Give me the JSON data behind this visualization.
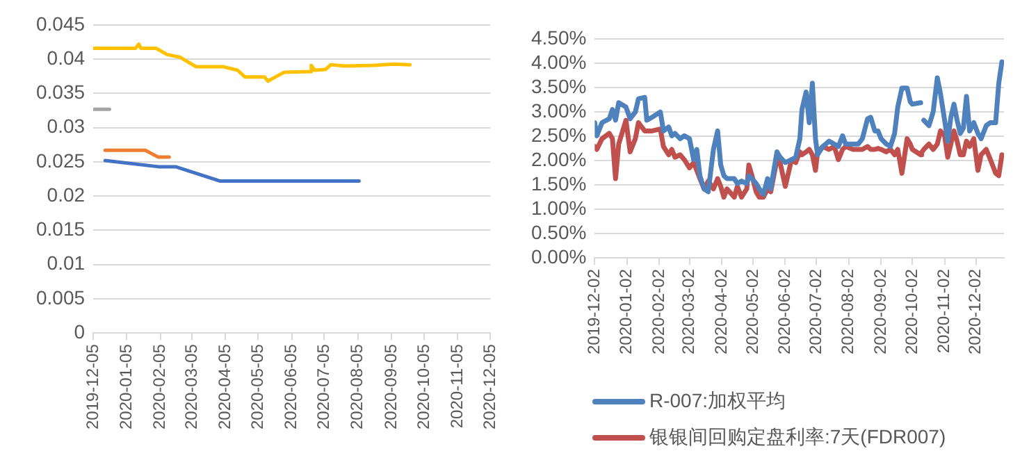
{
  "chart_data": [
    {
      "type": "line",
      "xlim": [
        "2019-12-05",
        "2020-12-05"
      ],
      "xticks": [
        "2019-12-05",
        "2020-01-05",
        "2020-02-05",
        "2020-03-05",
        "2020-04-05",
        "2020-05-05",
        "2020-06-05",
        "2020-07-05",
        "2020-08-05",
        "2020-09-05",
        "2020-10-05",
        "2020-11-05",
        "2020-12-05"
      ],
      "ylim": [
        0,
        0.045
      ],
      "yticks": [
        0,
        0.005,
        0.01,
        0.015,
        0.02,
        0.025,
        0.03,
        0.035,
        0.04,
        0.045
      ],
      "grid": "y",
      "marker": "none",
      "series": [
        {
          "color": "#ffc000",
          "x": [
            "2019-12-05",
            "2020-01-13",
            "2020-01-16",
            "2020-01-18",
            "2020-02-01",
            "2020-02-11",
            "2020-02-23",
            "2020-03-09",
            "2020-04-03",
            "2020-04-16",
            "2020-04-23",
            "2020-05-11",
            "2020-05-14",
            "2020-05-22",
            "2020-05-29",
            "2020-06-22",
            "2020-06-23",
            "2020-06-26",
            "2020-07-06",
            "2020-07-11",
            "2020-07-24",
            "2020-08-20",
            "2020-09-07",
            "2020-09-22"
          ],
          "values": [
            0.0416,
            0.0416,
            0.0422,
            0.0416,
            0.0416,
            0.0407,
            0.0403,
            0.0389,
            0.0389,
            0.0384,
            0.0374,
            0.0374,
            0.0368,
            0.0375,
            0.0381,
            0.0382,
            0.0391,
            0.0384,
            0.0385,
            0.0392,
            0.039,
            0.0391,
            0.0393,
            0.0392
          ]
        },
        {
          "color": "#a5a5a5",
          "x": [
            "2019-12-05",
            "2019-12-20"
          ],
          "values": [
            0.0327,
            0.0327
          ]
        },
        {
          "color": "#ed7d31",
          "x": [
            "2019-12-16",
            "2020-01-22",
            "2020-02-03",
            "2020-02-13"
          ],
          "values": [
            0.0267,
            0.0267,
            0.0257,
            0.0257
          ]
        },
        {
          "color": "#4472c4",
          "x": [
            "2019-12-16",
            "2020-02-03",
            "2020-02-19",
            "2020-03-31",
            "2020-08-06"
          ],
          "values": [
            0.0252,
            0.0243,
            0.0243,
            0.0222,
            0.0222
          ]
        }
      ]
    },
    {
      "type": "line",
      "xlim": [
        "2019-12-02",
        "2020-12-29"
      ],
      "xticks": [
        "2019-12-02",
        "2020-01-02",
        "2020-02-02",
        "2020-03-02",
        "2020-04-02",
        "2020-05-02",
        "2020-06-02",
        "2020-07-02",
        "2020-08-02",
        "2020-09-02",
        "2020-10-02",
        "2020-11-02",
        "2020-12-02"
      ],
      "ylim": [
        0,
        4.5
      ],
      "yticks": [
        {
          "value": 0,
          "label": "0.00%"
        },
        {
          "value": 0.5,
          "label": "0.50%"
        },
        {
          "value": 1,
          "label": "1.00%"
        },
        {
          "value": 1.5,
          "label": "1.50%"
        },
        {
          "value": 2,
          "label": "2.00%"
        },
        {
          "value": 2.5,
          "label": "2.50%"
        },
        {
          "value": 3,
          "label": "3.00%"
        },
        {
          "value": 3.5,
          "label": "3.50%"
        },
        {
          "value": 4,
          "label": "4.00%"
        },
        {
          "value": 4.5,
          "label": "4.50%"
        }
      ],
      "grid": "y",
      "marker": "none",
      "legend": "bottom",
      "x": [
        "2019-12-02",
        "2019-12-04",
        "2019-12-09",
        "2019-12-16",
        "2019-12-19",
        "2019-12-22",
        "2019-12-25",
        "2020-01-01",
        "2020-01-05",
        "2020-01-10",
        "2020-01-13",
        "2020-01-19",
        "2020-01-21",
        "2020-01-26",
        "2020-02-03",
        "2020-02-06",
        "2020-02-11",
        "2020-02-14",
        "2020-02-17",
        "2020-02-22",
        "2020-02-26",
        "2020-03-02",
        "2020-03-06",
        "2020-03-09",
        "2020-03-12",
        "2020-03-16",
        "2020-03-20",
        "2020-03-25",
        "2020-03-29",
        "2020-04-01",
        "2020-04-04",
        "2020-04-07",
        "2020-04-14",
        "2020-04-17",
        "2020-04-21",
        "2020-04-26",
        "2020-04-28",
        "2020-05-01",
        "2020-05-05",
        "2020-05-08",
        "2020-05-12",
        "2020-05-16",
        "2020-05-19",
        "2020-05-25",
        "2020-05-28",
        "2020-06-02",
        "2020-06-08",
        "2020-06-12",
        "2020-06-16",
        "2020-06-18",
        "2020-06-22",
        "2020-06-25",
        "2020-06-28",
        "2020-07-01",
        "2020-07-03",
        "2020-07-08",
        "2020-07-14",
        "2020-07-19",
        "2020-07-23",
        "2020-07-27",
        "2020-07-30",
        "2020-08-06",
        "2020-08-11",
        "2020-08-15",
        "2020-08-20",
        "2020-08-23",
        "2020-08-27",
        "2020-08-30",
        "2020-09-02",
        "2020-09-07",
        "2020-09-11",
        "2020-09-15",
        "2020-09-18",
        "2020-09-22",
        "2020-09-27",
        "2020-09-30",
        "2020-10-02",
        "2020-10-10",
        "2020-10-11",
        "2020-10-13",
        "2020-10-18",
        "2020-10-22",
        "2020-10-26",
        "2020-10-29",
        "2020-11-02",
        "2020-11-05",
        "2020-11-08",
        "2020-11-11",
        "2020-11-14",
        "2020-11-17",
        "2020-11-20",
        "2020-11-23",
        "2020-11-26",
        "2020-11-30",
        "2020-12-04",
        "2020-12-07",
        "2020-12-12",
        "2020-12-16",
        "2020-12-21",
        "2020-12-24",
        "2020-12-27"
      ],
      "series": [
        {
          "name": "R-007:加权平均",
          "color": "#4f81bd",
          "values": [
            2.78,
            2.51,
            2.78,
            2.86,
            3.05,
            2.83,
            3.19,
            3.1,
            2.86,
            3.0,
            3.27,
            3.3,
            2.83,
            2.89,
            3.0,
            2.61,
            2.69,
            2.51,
            2.56,
            2.45,
            2.51,
            2.45,
            2.02,
            2.23,
            1.69,
            1.42,
            1.36,
            2.23,
            2.61,
            1.91,
            1.69,
            1.63,
            1.63,
            1.53,
            1.58,
            1.53,
            1.69,
            1.63,
            1.53,
            1.42,
            1.31,
            1.63,
            1.42,
            2.18,
            2.07,
            1.96,
            2.02,
            2.07,
            2.45,
            3.05,
            3.41,
            2.78,
            3.59,
            2.45,
            2.12,
            2.29,
            2.4,
            2.34,
            2.29,
            2.51,
            2.34,
            2.34,
            2.34,
            2.45,
            2.86,
            2.89,
            2.61,
            2.61,
            2.45,
            2.34,
            2.29,
            2.56,
            3.1,
            3.49,
            3.49,
            3.21,
            3.16,
            3.19,
            null,
            2.83,
            2.72,
            3.0,
            3.7,
            3.38,
            2.83,
            2.4,
            2.89,
            3.16,
            2.83,
            2.56,
            2.67,
            3.32,
            2.61,
            2.78,
            2.56,
            2.45,
            2.72,
            2.78,
            2.78,
            3.59,
            4.03
          ]
        },
        {
          "name": "银银间回购定盘利率:7天(FDR007)",
          "color": "#c0504d",
          "values": [
            2.29,
            2.23,
            2.45,
            2.56,
            2.45,
            1.63,
            2.34,
            2.83,
            2.18,
            2.45,
            2.78,
            2.61,
            2.61,
            2.61,
            2.65,
            2.29,
            2.12,
            2.23,
            2.07,
            2.12,
            2.02,
            1.85,
            1.96,
            1.8,
            1.63,
            1.42,
            1.58,
            1.42,
            1.63,
            1.47,
            1.25,
            1.42,
            1.25,
            1.47,
            1.25,
            1.42,
            1.91,
            1.69,
            1.36,
            1.25,
            1.25,
            1.42,
            1.36,
            2.02,
            1.96,
            1.47,
            2.02,
            1.96,
            2.18,
            2.12,
            2.18,
            2.23,
            2.12,
            1.8,
            2.18,
            2.29,
            2.23,
            2.29,
            2.02,
            2.23,
            2.29,
            2.23,
            2.23,
            2.23,
            2.29,
            2.23,
            2.23,
            2.25,
            2.23,
            2.18,
            2.23,
            2.12,
            2.23,
            1.74,
            2.45,
            2.34,
            2.23,
            2.12,
            2.17,
            2.23,
            2.34,
            2.23,
            2.34,
            2.61,
            2.51,
            2.07,
            2.34,
            2.61,
            2.4,
            2.12,
            2.12,
            2.4,
            2.29,
            2.45,
            1.8,
            2.12,
            2.23,
            2.02,
            1.74,
            1.69,
            2.12
          ]
        }
      ]
    }
  ]
}
